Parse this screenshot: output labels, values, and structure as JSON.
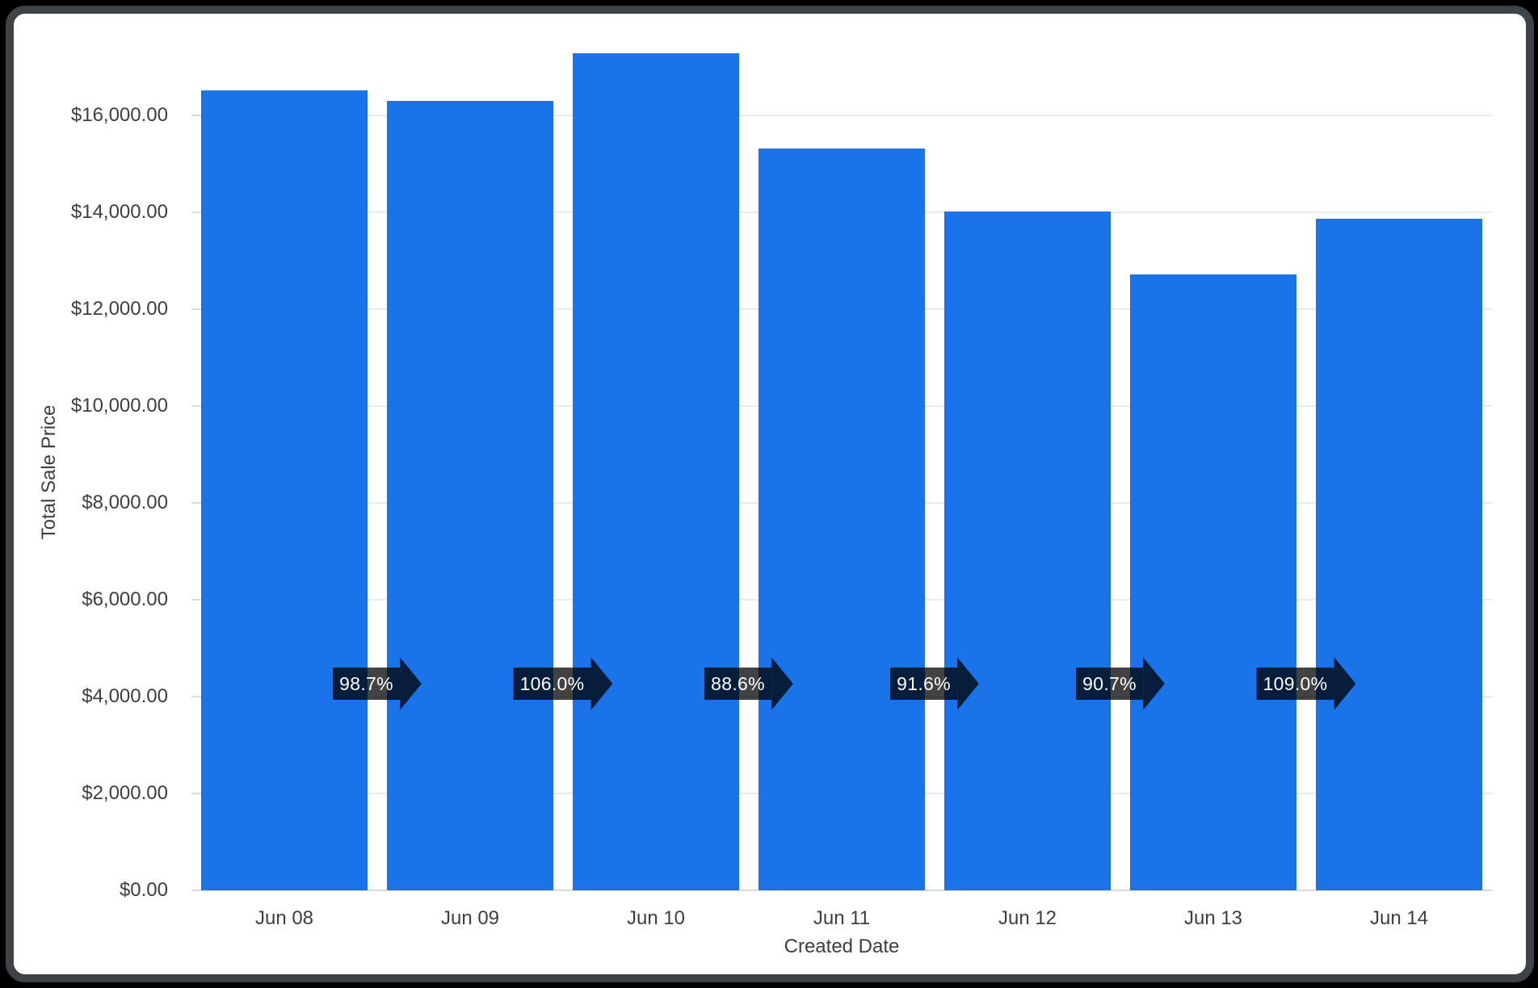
{
  "chart_data": {
    "type": "bar",
    "title": "",
    "xlabel": "Created Date",
    "ylabel": "Total Sale Price",
    "categories": [
      "Jun 08",
      "Jun 09",
      "Jun 10",
      "Jun 11",
      "Jun 12",
      "Jun 13",
      "Jun 14"
    ],
    "values": [
      16520,
      16300,
      17280,
      15310,
      14020,
      12715,
      13860
    ],
    "pct_change_labels": [
      "98.7%",
      "106.0%",
      "88.6%",
      "91.6%",
      "90.7%",
      "109.0%"
    ],
    "y_tick_labels": [
      "$0.00",
      "$2,000.00",
      "$4,000.00",
      "$6,000.00",
      "$8,000.00",
      "$10,000.00",
      "$12,000.00",
      "$14,000.00",
      "$16,000.00"
    ],
    "y_tick_values": [
      0,
      2000,
      4000,
      6000,
      8000,
      10000,
      12000,
      14000,
      16000
    ],
    "ylim": [
      0,
      18100
    ],
    "grid": true,
    "legend": false
  },
  "colors": {
    "bar": "#1a73e8",
    "gridline": "#e9eaec",
    "baseline": "#d9dbe0",
    "tick_dash": "#dadce0",
    "axis_text": "#3b3e42",
    "badge_bg": "rgba(0,0,0,0.74)",
    "badge_text": "#ffffff",
    "panel_bg": "#ffffff",
    "frame_border": "#3e4347",
    "page_bg": "#000000"
  }
}
